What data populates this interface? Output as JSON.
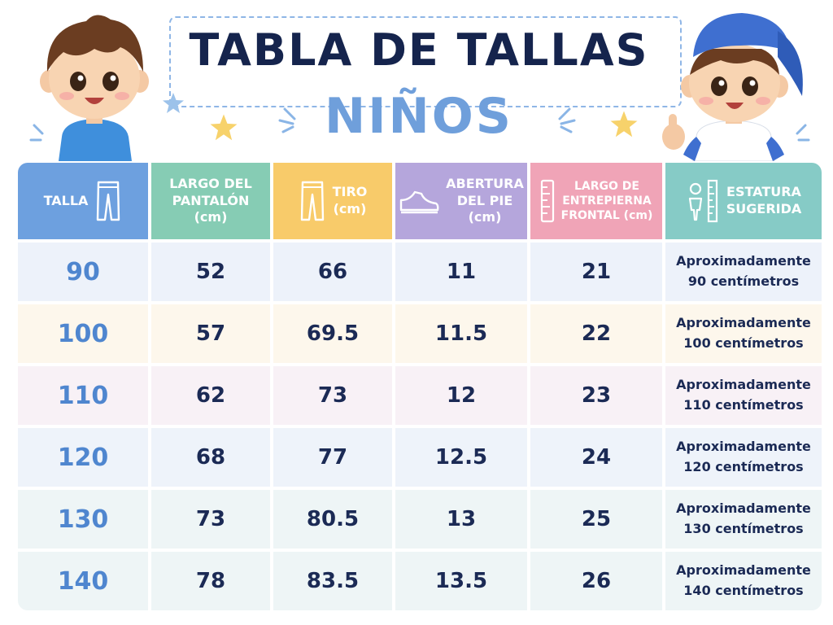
{
  "title": {
    "main": "TABLA DE TALLAS",
    "sub": "NIÑOS"
  },
  "colors": {
    "talla_header": "#6da0df",
    "largo_header": "#86ccb4",
    "tiro_header": "#f8cb6a",
    "abertura_header": "#b5a6dc",
    "entrepierna_header": "#f0a4b7",
    "estatura_header": "#86cbc6",
    "title_main": "#15244d",
    "title_sub": "#6f9fdb"
  },
  "headers": [
    {
      "lines": [
        "TALLA"
      ],
      "icon": "pants-icon"
    },
    {
      "lines": [
        "LARGO DEL",
        "PANTALÓN",
        "(cm)"
      ],
      "icon": ""
    },
    {
      "lines": [
        "TIRO",
        "(cm)"
      ],
      "icon": "pants-icon"
    },
    {
      "lines": [
        "ABERTURA",
        "DEL PIE",
        "(cm)"
      ],
      "icon": "shoe-icon"
    },
    {
      "lines": [
        "LARGO DE",
        "ENTREPIERNA",
        "FRONTAL (cm)"
      ],
      "icon": "ruler-icon"
    },
    {
      "lines": [
        "ESTATURA",
        "SUGERIDA"
      ],
      "icon": "child-height-icon"
    }
  ],
  "rows": [
    {
      "talla": "90",
      "largo": "52",
      "tiro": "66",
      "abertura": "11",
      "entrepierna": "21",
      "estatura": [
        "Aproximadamente",
        "90 centímetros"
      ]
    },
    {
      "talla": "100",
      "largo": "57",
      "tiro": "69.5",
      "abertura": "11.5",
      "entrepierna": "22",
      "estatura": [
        "Aproximadamente",
        "100 centímetros"
      ]
    },
    {
      "talla": "110",
      "largo": "62",
      "tiro": "73",
      "abertura": "12",
      "entrepierna": "23",
      "estatura": [
        "Aproximadamente",
        "110 centímetros"
      ]
    },
    {
      "talla": "120",
      "largo": "68",
      "tiro": "77",
      "abertura": "12.5",
      "entrepierna": "24",
      "estatura": [
        "Aproximadamente",
        "120 centímetros"
      ]
    },
    {
      "talla": "130",
      "largo": "73",
      "tiro": "80.5",
      "abertura": "13",
      "entrepierna": "25",
      "estatura": [
        "Aproximadamente",
        "130 centímetros"
      ]
    },
    {
      "talla": "140",
      "largo": "78",
      "tiro": "83.5",
      "abertura": "13.5",
      "entrepierna": "26",
      "estatura": [
        "Aproximadamente",
        "140 centímetros"
      ]
    }
  ]
}
